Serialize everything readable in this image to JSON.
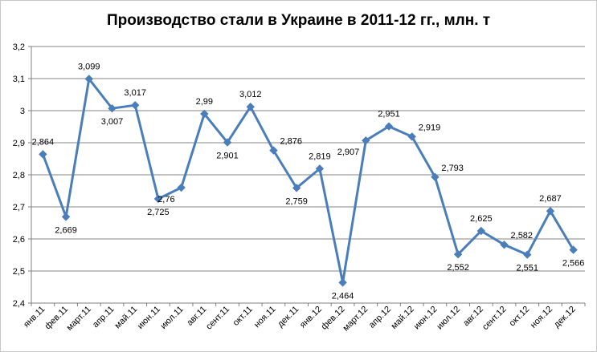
{
  "chart_data": {
    "type": "line",
    "title": "Производство стали в Украине в 2011-12 гг., млн. т",
    "categories": [
      "янв.11",
      "фев.11",
      "март.11",
      "апр.11",
      "май.11",
      "июн.11",
      "июл.11",
      "авг.11",
      "сент.11",
      "окт.11",
      "ноя.11",
      "дек.11",
      "янв.12",
      "фев.12",
      "март.12",
      "апр.12",
      "май.12",
      "июн.12",
      "июл.12",
      "авг.12",
      "сент.12",
      "окт.12",
      "ноя.12",
      "дек.12"
    ],
    "series": [
      {
        "values": [
          2.864,
          2.669,
          3.099,
          3.007,
          3.017,
          2.725,
          2.76,
          2.99,
          2.901,
          3.012,
          2.876,
          2.759,
          2.819,
          2.464,
          2.907,
          2.951,
          2.919,
          2.793,
          2.552,
          2.625,
          2.582,
          2.551,
          2.687,
          2.566
        ],
        "labels": [
          "2,864",
          "2,669",
          "3,099",
          "3,007",
          "3,017",
          "2,725",
          "2,76",
          "2,99",
          "2,901",
          "3,012",
          "2,876",
          "2,759",
          "2,819",
          "2,464",
          "2,907",
          "2,951",
          "2,919",
          "2,793",
          "2,552",
          "2,625",
          "2,582",
          "2,551",
          "2,687",
          "2,566"
        ],
        "color": "#4a7ebb"
      }
    ],
    "y_ticks": [
      "2,4",
      "2,5",
      "2,6",
      "2,7",
      "2,8",
      "2,9",
      "3",
      "3,1",
      "3,2"
    ],
    "ylim": [
      2.4,
      3.2
    ],
    "grid": true,
    "legend": "none",
    "xlabel": "",
    "ylabel": ""
  }
}
